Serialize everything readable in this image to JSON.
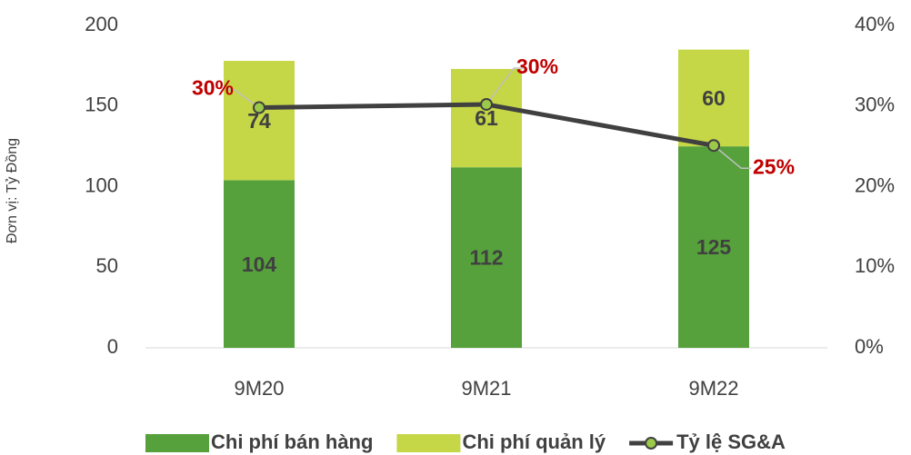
{
  "chart_data": {
    "type": "bar",
    "stacked": true,
    "y_label": "Đơn vị: Tỷ Đồng",
    "categories": [
      "9M20",
      "9M21",
      "9M22"
    ],
    "series": [
      {
        "name": "Chi phí bán hàng",
        "color": "#56a13c",
        "values": [
          104,
          112,
          125
        ]
      },
      {
        "name": "Chi phí quản lý",
        "color": "#c5d746",
        "values": [
          74,
          61,
          60
        ]
      },
      {
        "name": "Tỷ lệ SG&A",
        "type": "line",
        "axis": "y2",
        "color": "#404040",
        "marker_color": "#9bc94a",
        "values": [
          29.8,
          30.2,
          25.1
        ],
        "value_labels": [
          "30%",
          "30%",
          "25%"
        ]
      }
    ],
    "ylim": [
      0,
      200
    ],
    "yticks": [
      0,
      50,
      100,
      150,
      200
    ],
    "y2lim": [
      0,
      40
    ],
    "y2ticks": [
      {
        "value": 0,
        "label": "0%"
      },
      {
        "value": 10,
        "label": "10%"
      },
      {
        "value": 20,
        "label": "20%"
      },
      {
        "value": 30,
        "label": "30%"
      },
      {
        "value": 40,
        "label": "40%"
      }
    ],
    "legend": "bottom",
    "grid": false
  }
}
